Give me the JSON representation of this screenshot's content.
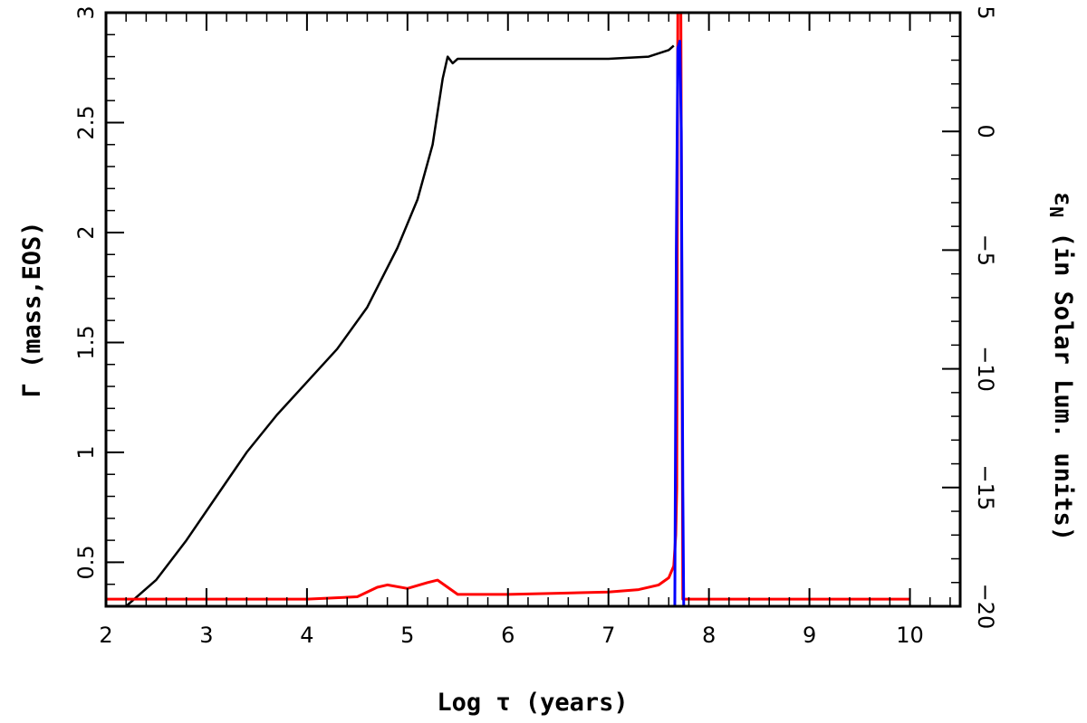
{
  "chart_data": {
    "type": "line",
    "xlabel": "Log τ (years)",
    "ylabel_left": "Γ (mass,EOS)",
    "ylabel_right": "εN (in Solar Lum. units)",
    "ylabel_right_symbol": "ε",
    "ylabel_right_subscript": "N",
    "ylabel_right_rest": " (in Solar Lum. units)",
    "xlim": [
      2,
      10.5
    ],
    "ylim_left": [
      0.3,
      3.0
    ],
    "ylim_right": [
      -20,
      5
    ],
    "x_ticks": [
      "2",
      "3",
      "4",
      "5",
      "6",
      "7",
      "8",
      "9",
      "10"
    ],
    "y_left_ticks": [
      "0.5",
      "1",
      "1.5",
      "2",
      "2.5",
      "3"
    ],
    "y_right_ticks": [
      "−20",
      "−15",
      "−10",
      "−5",
      "0",
      "5"
    ],
    "grid": false,
    "series": [
      {
        "axis": "left",
        "color": "#000000",
        "x": [
          2.2,
          2.5,
          2.8,
          3.1,
          3.4,
          3.7,
          4.0,
          4.3,
          4.6,
          4.9,
          5.1,
          5.25,
          5.35,
          5.4,
          5.45,
          5.5,
          5.55,
          6.0,
          6.5,
          7.0,
          7.4,
          7.6,
          7.65
        ],
        "y": [
          0.3,
          0.42,
          0.6,
          0.8,
          1.0,
          1.17,
          1.32,
          1.47,
          1.66,
          1.93,
          2.15,
          2.4,
          2.7,
          2.8,
          2.77,
          2.79,
          2.79,
          2.79,
          2.79,
          2.79,
          2.8,
          2.83,
          2.85
        ]
      },
      {
        "axis": "right",
        "color": "#ff0000",
        "x": [
          2.0,
          3.0,
          4.0,
          4.5,
          4.7,
          4.8,
          5.0,
          5.2,
          5.3,
          5.4,
          5.5,
          6.0,
          6.5,
          7.0,
          7.3,
          7.5,
          7.6,
          7.65,
          7.67,
          7.68,
          7.69,
          7.7,
          7.72,
          7.74,
          7.76,
          8.0,
          9.0,
          10.0
        ],
        "y": [
          -19.7,
          -19.7,
          -19.7,
          -19.6,
          -19.2,
          -19.1,
          -19.25,
          -19.0,
          -18.9,
          -19.2,
          -19.5,
          -19.5,
          -19.45,
          -19.4,
          -19.3,
          -19.1,
          -18.8,
          -18.3,
          -17.0,
          -15.0,
          5.5,
          5.5,
          5.5,
          -19.7,
          -19.7,
          -19.7,
          -19.7,
          -19.7
        ]
      },
      {
        "axis": "right",
        "color": "#0000ff",
        "x": [
          7.66,
          7.675,
          7.69,
          7.71,
          7.725,
          7.74,
          7.75
        ],
        "y": [
          -20.5,
          -5.0,
          3.5,
          3.8,
          0.0,
          -15.0,
          -20.5
        ]
      }
    ]
  }
}
